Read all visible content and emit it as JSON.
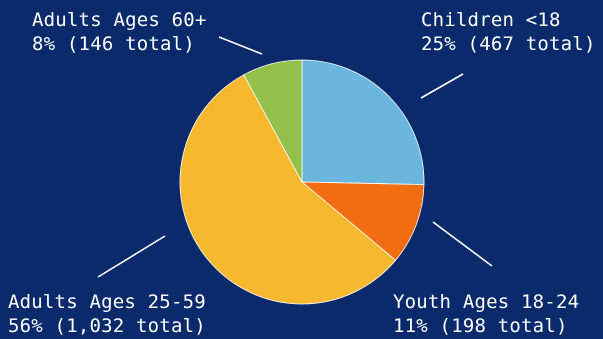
{
  "chart_data": {
    "type": "pie",
    "title": "",
    "legend": "none",
    "slices": [
      {
        "label": "Children <18",
        "value": 467,
        "percent_text": "25% (467 total)",
        "color": "#6bb6dc"
      },
      {
        "label": "Youth Ages 18-24",
        "value": 198,
        "percent_text": "11% (198 total)",
        "color": "#f26d0f"
      },
      {
        "label": "Adults Ages 25-59",
        "value": 1032,
        "percent_text": "56% (1,032 total)",
        "color": "#f5b82e"
      },
      {
        "label": "Adults Ages 60+",
        "value": 146,
        "percent_text": "8% (146 total)",
        "color": "#93c04a"
      }
    ]
  },
  "colors": {
    "background": "#0b2a6b",
    "label_text": "#ffffff",
    "leader_line": "#ffffff"
  }
}
